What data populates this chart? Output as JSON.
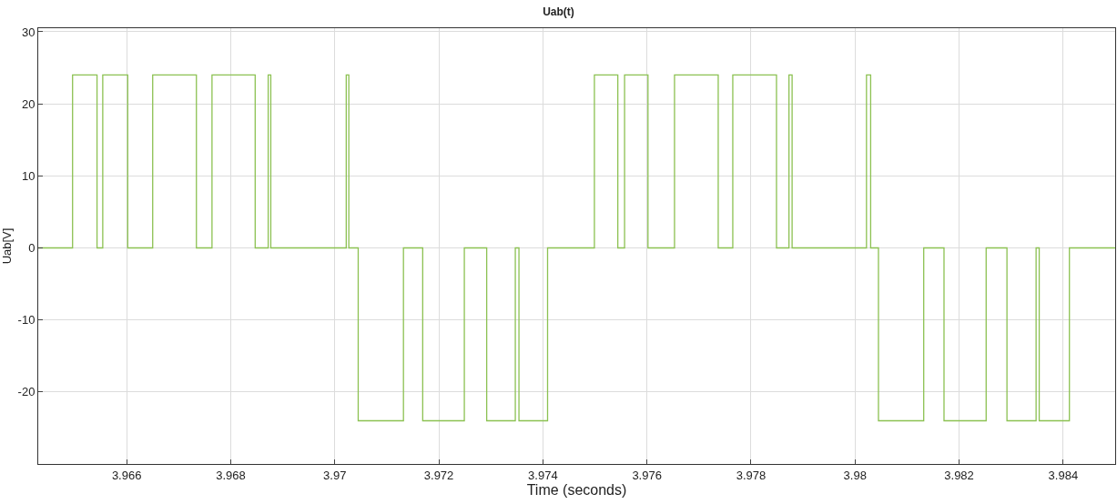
{
  "chart_data": {
    "type": "step",
    "title": "Uab(t)",
    "xlabel": "Time (seconds)",
    "ylabel": "Uab[V]",
    "x": [
      3.9643,
      3.96496,
      3.96543,
      3.96554,
      3.96602,
      3.9665,
      3.96734,
      3.96764,
      3.96847,
      3.96872,
      3.96877,
      3.97022,
      3.97027,
      3.97045,
      3.97132,
      3.97169,
      3.97249,
      3.97292,
      3.97347,
      3.97354,
      3.97409,
      3.97499,
      3.97544,
      3.97557,
      3.97602,
      3.97653,
      3.97737,
      3.97765,
      3.97849,
      3.97873,
      3.97879,
      3.98022,
      3.9803,
      3.98045,
      3.98132,
      3.98171,
      3.98252,
      3.98292,
      3.98348,
      3.98354,
      3.98412,
      3.985
    ],
    "series": [
      {
        "color": "#8cc152",
        "values": [
          0,
          24,
          0,
          24,
          0,
          24,
          0,
          24,
          0,
          24,
          0,
          24,
          0,
          -24,
          0,
          -24,
          0,
          -24,
          0,
          -24,
          0,
          24,
          0,
          24,
          0,
          24,
          0,
          24,
          0,
          24,
          0,
          24,
          0,
          -24,
          0,
          -24,
          0,
          -24,
          0,
          -24,
          0,
          0
        ]
      }
    ],
    "xlim": [
      3.9643,
      3.985
    ],
    "xticks": [
      3.966,
      3.968,
      3.97,
      3.972,
      3.974,
      3.976,
      3.978,
      3.98,
      3.982,
      3.984
    ],
    "ylim": [
      -30,
      30.5
    ],
    "yticks": [
      -20,
      -10,
      0,
      10,
      20,
      30
    ],
    "grid": true,
    "legend": false,
    "marker": "none",
    "line_style": "solid"
  }
}
